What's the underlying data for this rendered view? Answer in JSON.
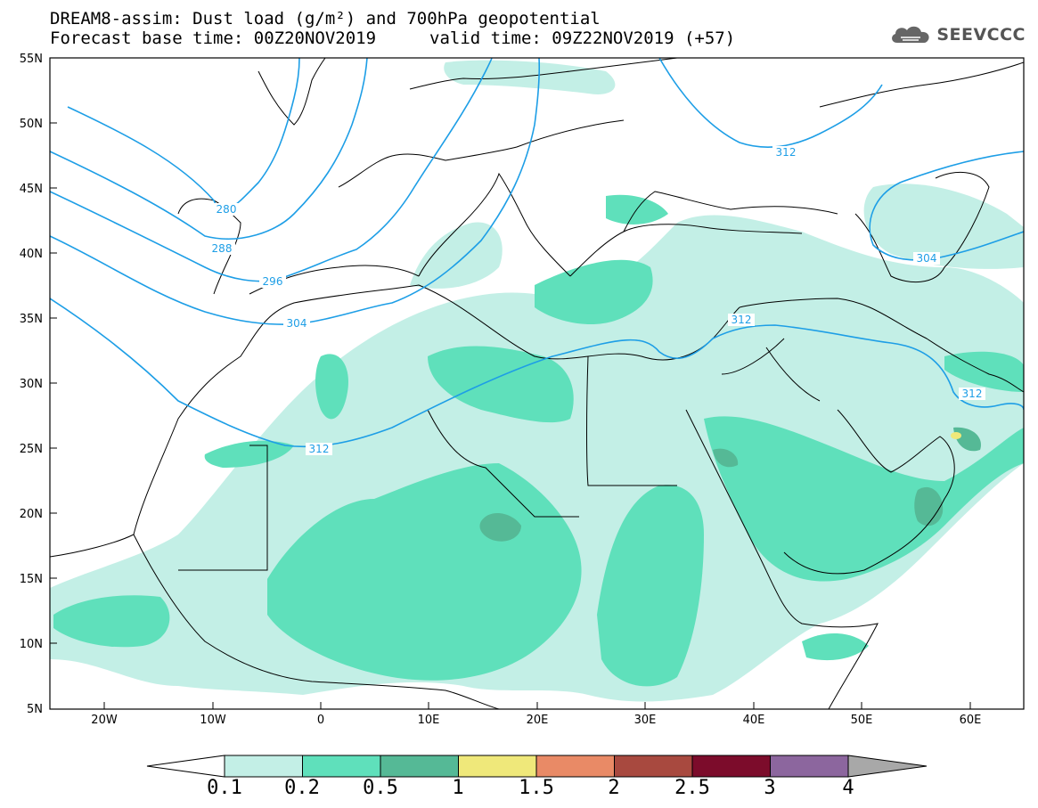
{
  "header": {
    "title_line1": "DREAM8-assim: Dust load (g/m²) and 700hPa geopotential",
    "title_line2": "Forecast base time: 00Z20NOV2019",
    "title_line2_valid": "valid time: 09Z22NOV2019 (+57)"
  },
  "logo": {
    "text": "SEEVCCC",
    "icon": "cloud-icon"
  },
  "axes": {
    "lat_labels": [
      "55N",
      "50N",
      "45N",
      "40N",
      "35N",
      "30N",
      "25N",
      "20N",
      "15N",
      "10N",
      "5N"
    ],
    "lon_labels": [
      "20W",
      "10W",
      "0",
      "10E",
      "20E",
      "30E",
      "40E",
      "50E",
      "60E"
    ],
    "lat_range": [
      5,
      55
    ],
    "lon_range": [
      -25,
      65
    ]
  },
  "contours": {
    "labels": [
      "280",
      "288",
      "296",
      "304",
      "312",
      "312",
      "312",
      "312",
      "304"
    ]
  },
  "colorbar": {
    "labels": [
      "0.1",
      "0.2",
      "0.5",
      "1",
      "1.5",
      "2",
      "2.5",
      "3",
      "4"
    ],
    "colors": [
      "#c3efe6",
      "#5fe0bb",
      "#55b996",
      "#efe87a",
      "#e98a66",
      "#a8493f",
      "#7c0c2b",
      "#8c669e"
    ],
    "under_color": "#ffffff",
    "over_color": "#a8a8a8"
  },
  "colors": {
    "contour": "#1d9ee6",
    "border": "#000000"
  }
}
